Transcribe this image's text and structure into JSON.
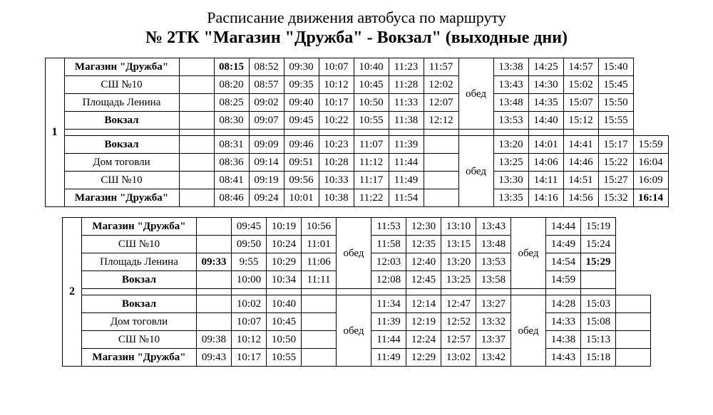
{
  "header": {
    "line1": "Расписание движения автобуса по маршруту",
    "line2": "№ 2ТК \"Магазин \"Дружба\" - Вокзал\" (выходные дни)"
  },
  "styling": {
    "background_color": "#ffffff",
    "text_color": "#000000",
    "grid_color": "#000000",
    "font_family": "Times New Roman",
    "title_fontsize": 22,
    "title2_fontsize": 24,
    "cell_fontsize": 15
  },
  "blocks": [
    {
      "number": "1",
      "forward": {
        "stops": [
          {
            "name": "Магазин \"Дружба\"",
            "bold": true
          },
          {
            "name": "СШ №10",
            "bold": false
          },
          {
            "name": "Площадь Ленина",
            "bold": false
          },
          {
            "name": "Вокзал",
            "bold": true
          }
        ],
        "trips": [
          [
            "08:15",
            "08:20",
            "08:25",
            "08:30"
          ],
          [
            "08:52",
            "08:57",
            "09:02",
            "09:07"
          ],
          [
            "09:30",
            "09:35",
            "09:40",
            "09:45"
          ],
          [
            "10:07",
            "10:12",
            "10:17",
            "10:22"
          ],
          [
            "10:40",
            "10:45",
            "10:50",
            "10:55"
          ],
          [
            "11:23",
            "11:28",
            "11:33",
            "11:38"
          ],
          [
            "11:57",
            "12:02",
            "12:07",
            "12:12"
          ],
          [
            "13:38",
            "13:43",
            "13:48",
            "13:53"
          ],
          [
            "14:25",
            "14:30",
            "14:35",
            "14:40"
          ],
          [
            "14:57",
            "15:02",
            "15:07",
            "15:12"
          ],
          [
            "15:40",
            "15:45",
            "15:50",
            "15:55"
          ]
        ],
        "bold_cells": [
          [
            0,
            0
          ]
        ],
        "extra_col": [
          "",
          "",
          "",
          ""
        ],
        "break_after_trip_index": 6,
        "break_label": "обед"
      },
      "back": {
        "stops": [
          {
            "name": "Вокзал",
            "bold": true
          },
          {
            "name": "Дом тоговли",
            "bold": false
          },
          {
            "name": "СШ №10",
            "bold": false
          },
          {
            "name": "Магазин \"Дружба\"",
            "bold": true
          }
        ],
        "trips": [
          [
            "08:31",
            "08:36",
            "08:41",
            "08:46"
          ],
          [
            "09:09",
            "09:14",
            "09:19",
            "09:24"
          ],
          [
            "09:46",
            "09:51",
            "09:56",
            "10:01"
          ],
          [
            "10:23",
            "10:28",
            "10:33",
            "10:38"
          ],
          [
            "11:07",
            "11:12",
            "11:17",
            "11:22"
          ],
          [
            "11:39",
            "11:44",
            "11:49",
            "11:54"
          ],
          [
            "13:20",
            "13:25",
            "13:30",
            "13:35"
          ],
          [
            "14:01",
            "14:06",
            "14:11",
            "14:16"
          ],
          [
            "14:41",
            "14:46",
            "14:51",
            "14:56"
          ],
          [
            "15:17",
            "15:22",
            "15:27",
            "15:32"
          ],
          [
            "15:59",
            "16:04",
            "16:09",
            "16:14"
          ]
        ],
        "bold_cells": [
          [
            10,
            3
          ]
        ],
        "extra_col": [
          "",
          "",
          "",
          ""
        ],
        "empty_trip_after_index": 5,
        "break_after_trip_index": 5,
        "break_label": "обед"
      }
    },
    {
      "number": "2",
      "forward": {
        "stops": [
          {
            "name": "Магазин \"Дружба\"",
            "bold": true
          },
          {
            "name": "СШ №10",
            "bold": false
          },
          {
            "name": "Площадь Ленина",
            "bold": false
          },
          {
            "name": "Вокзал",
            "bold": true
          }
        ],
        "trips": [
          [
            "09:45",
            "09:50",
            "9:55",
            "10:00"
          ],
          [
            "10:19",
            "10:24",
            "10:29",
            "10:34"
          ],
          [
            "10:56",
            "11:01",
            "11:06",
            "11:11"
          ],
          [
            "11:53",
            "11:58",
            "12:03",
            "12:08"
          ],
          [
            "12:30",
            "12:35",
            "12:40",
            "12:45"
          ],
          [
            "13:10",
            "13:15",
            "13:20",
            "13:25"
          ],
          [
            "13:43",
            "13:48",
            "13:53",
            "13:58"
          ],
          [
            "14:44",
            "14:49",
            "14:54",
            "14:59"
          ],
          [
            "15:19",
            "15:24",
            "15:29",
            ""
          ]
        ],
        "bold_cells": [
          [
            8,
            2
          ]
        ],
        "extra_col": [
          "",
          "",
          "09:33",
          ""
        ],
        "extra_bold_rows": [
          2
        ],
        "breaks": [
          {
            "after_trip_index": 2,
            "label": "обед"
          },
          {
            "after_trip_index": 6,
            "label": "обед"
          }
        ]
      },
      "back": {
        "stops": [
          {
            "name": "Вокзал",
            "bold": true
          },
          {
            "name": "Дом тоговли",
            "bold": false
          },
          {
            "name": "СШ №10",
            "bold": false
          },
          {
            "name": "Магазин \"Дружба\"",
            "bold": true
          }
        ],
        "trips": [
          [
            "10:02",
            "10:07",
            "10:12",
            "10:17"
          ],
          [
            "10:40",
            "10:45",
            "10:50",
            "10:55"
          ],
          [
            "11:34",
            "11:39",
            "11:44",
            "11:49"
          ],
          [
            "12:14",
            "12:19",
            "12:24",
            "12:29"
          ],
          [
            "12:47",
            "12:52",
            "12:57",
            "13:02"
          ],
          [
            "13:27",
            "13:32",
            "13:37",
            "13:42"
          ],
          [
            "14:28",
            "14:33",
            "14:38",
            "14:43"
          ],
          [
            "15:03",
            "15:08",
            "15:13",
            "15:18"
          ]
        ],
        "bold_cells": [],
        "extra_col": [
          "",
          "",
          "09:38",
          "09:43"
        ],
        "empty_trip_after_index": 1,
        "breaks": [
          {
            "after_trip_index": 1,
            "label": "обед"
          },
          {
            "after_trip_index": 5,
            "label": "обед"
          }
        ],
        "trailing_empty": true
      }
    }
  ]
}
